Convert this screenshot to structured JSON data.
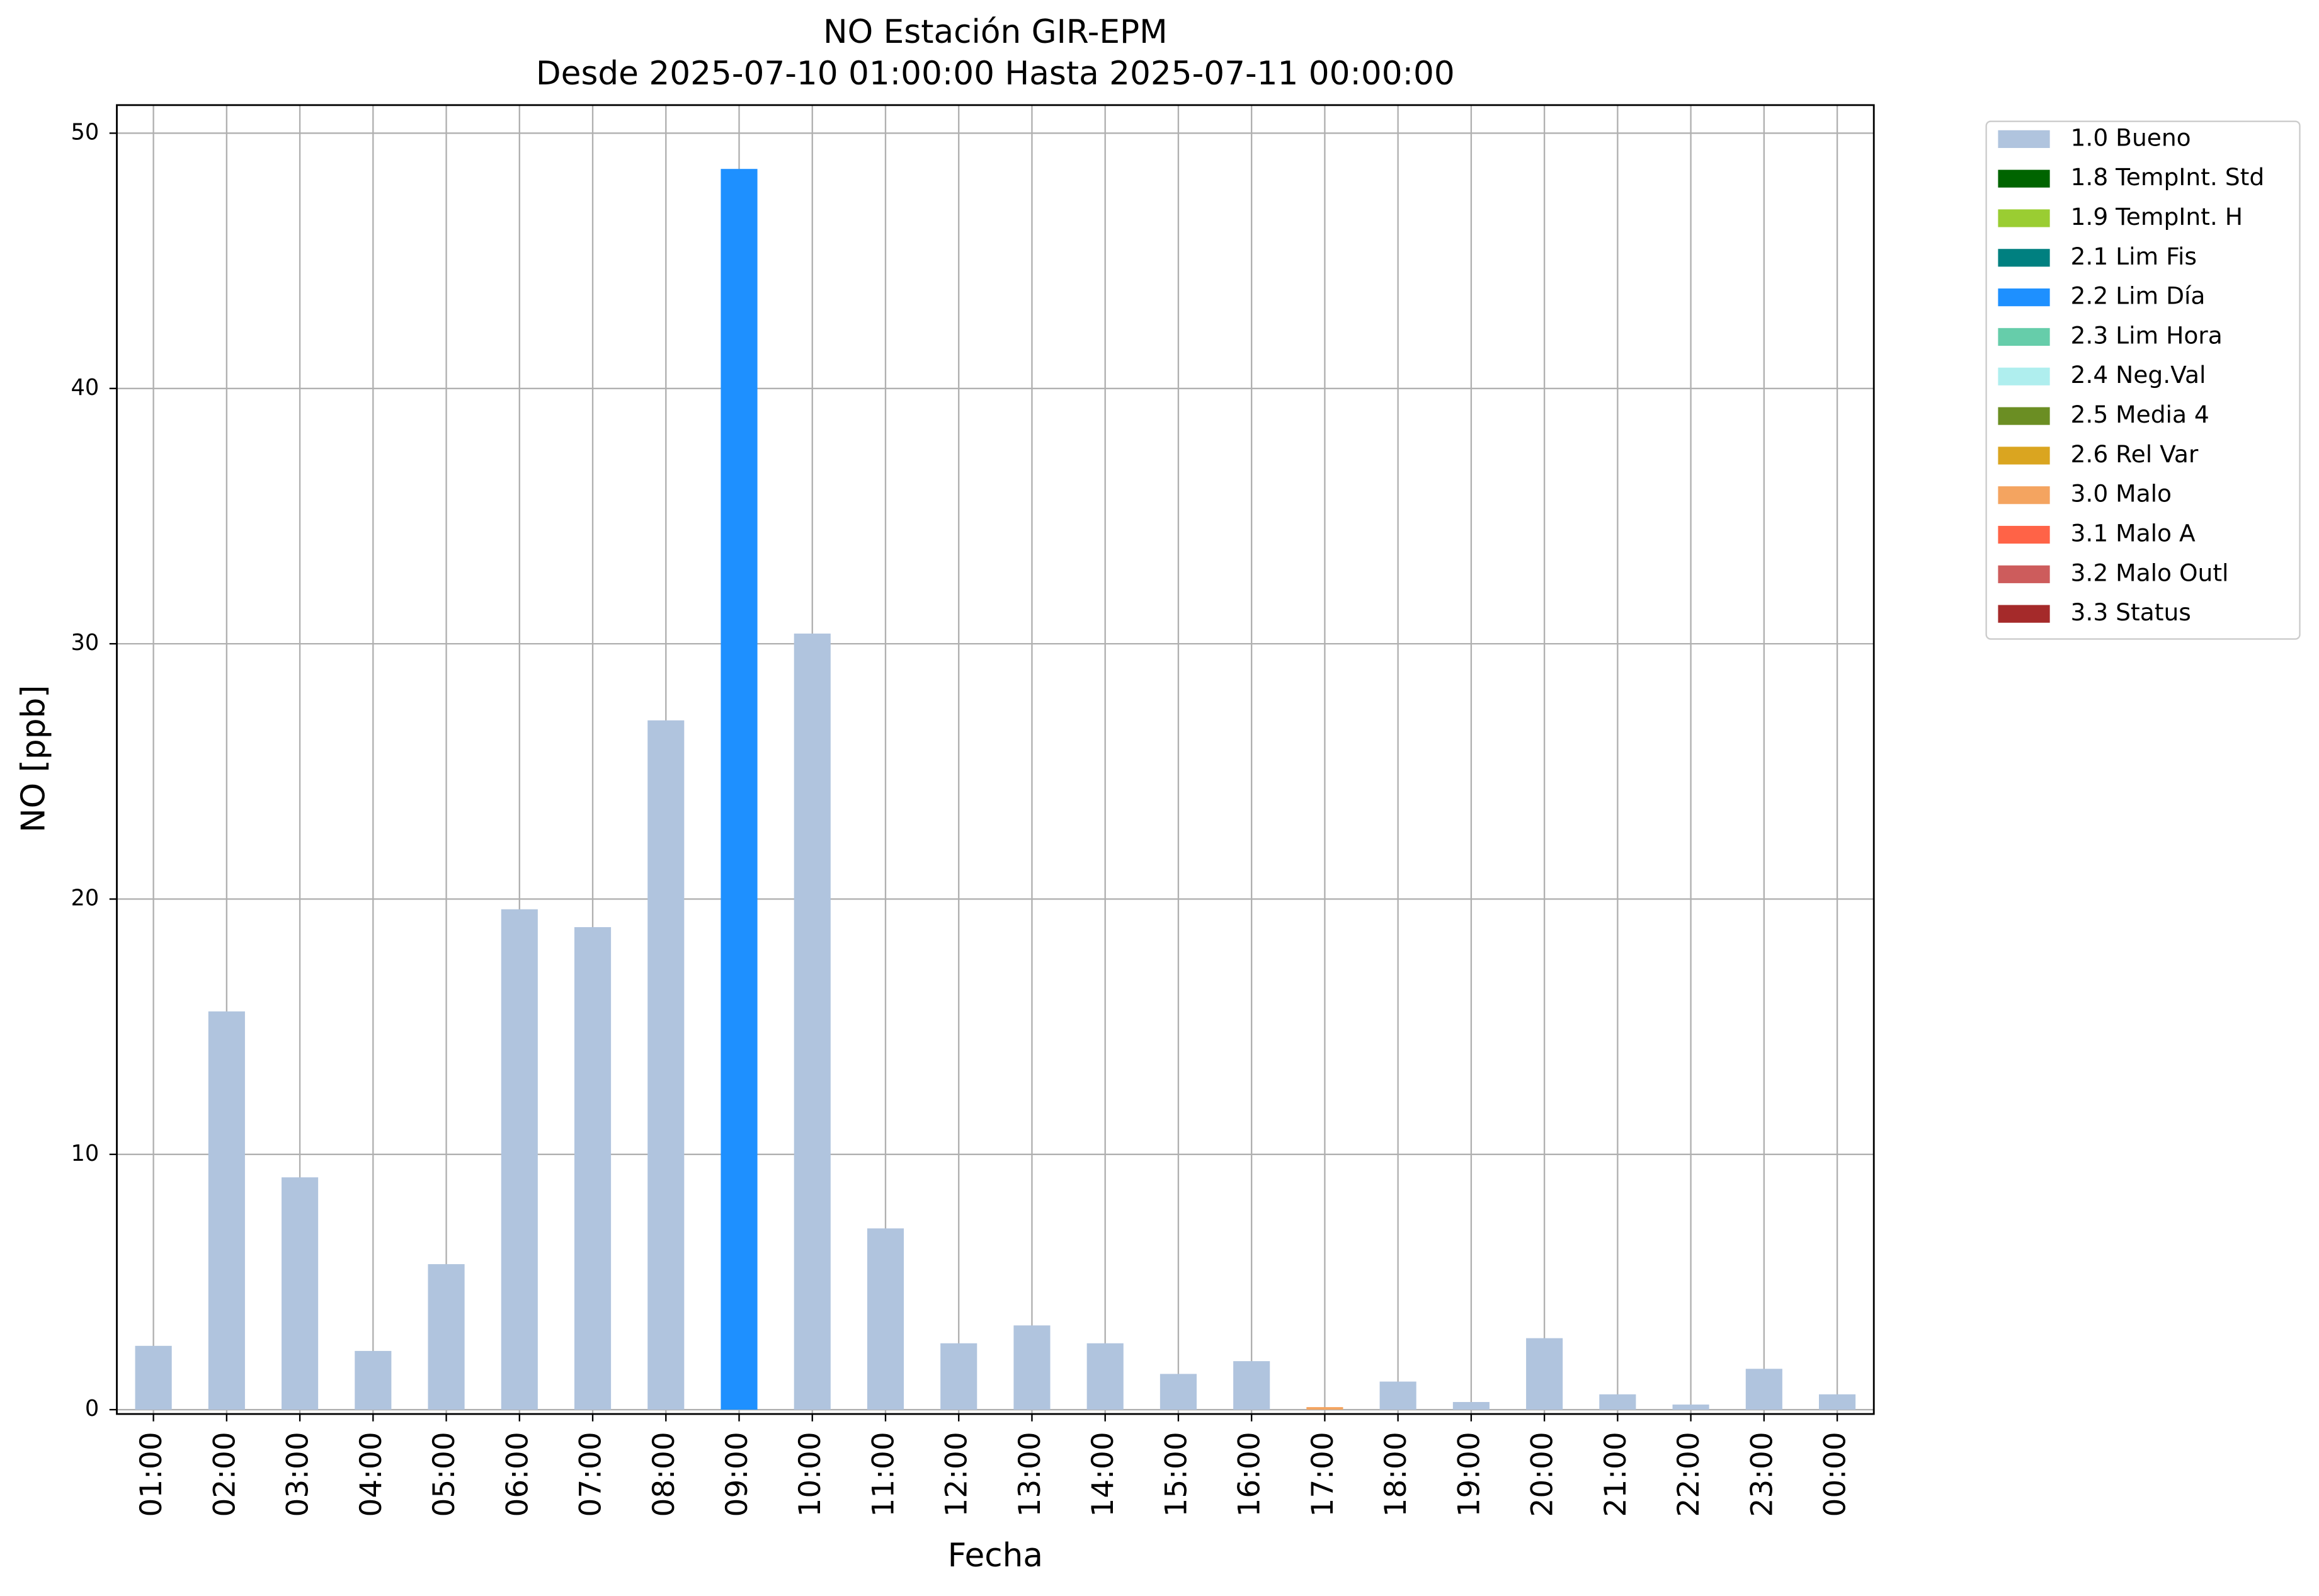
{
  "chart_data": {
    "type": "bar",
    "stacked": true,
    "title": "NO Estación GIR-EPM",
    "subtitle": "Desde 2025-07-10 01:00:00 Hasta 2025-07-11 00:00:00",
    "x_label": "Fecha",
    "y_label": "NO [ppb]",
    "categories": [
      "01:00",
      "02:00",
      "03:00",
      "04:00",
      "05:00",
      "06:00",
      "07:00",
      "08:00",
      "09:00",
      "10:00",
      "11:00",
      "12:00",
      "13:00",
      "14:00",
      "15:00",
      "16:00",
      "17:00",
      "18:00",
      "19:00",
      "20:00",
      "21:00",
      "22:00",
      "23:00",
      "00:00"
    ],
    "series": [
      {
        "name": "1.0 Bueno",
        "color": "#b0c4de",
        "values": [
          2.5,
          15.6,
          9.1,
          2.3,
          5.7,
          19.6,
          18.9,
          27.0,
          null,
          30.4,
          7.1,
          2.6,
          3.3,
          2.6,
          1.4,
          1.9,
          null,
          1.1,
          0.3,
          2.8,
          0.6,
          0.2,
          1.6,
          0.6
        ]
      },
      {
        "name": "1.8 TempInt. Std",
        "color": "#006400",
        "values": [
          null,
          null,
          null,
          null,
          null,
          null,
          null,
          null,
          null,
          null,
          null,
          null,
          null,
          null,
          null,
          null,
          null,
          null,
          null,
          null,
          null,
          null,
          null,
          null
        ]
      },
      {
        "name": "1.9 TempInt. H",
        "color": "#9acd32",
        "values": [
          null,
          null,
          null,
          null,
          null,
          null,
          null,
          null,
          null,
          null,
          null,
          null,
          null,
          null,
          null,
          null,
          null,
          null,
          null,
          null,
          null,
          null,
          null,
          null
        ]
      },
      {
        "name": "2.1 Lim Fis",
        "color": "#008080",
        "values": [
          null,
          null,
          null,
          null,
          null,
          null,
          null,
          null,
          null,
          null,
          null,
          null,
          null,
          null,
          null,
          null,
          null,
          null,
          null,
          null,
          null,
          null,
          null,
          null
        ]
      },
      {
        "name": "2.2 Lim Día",
        "color": "#1e90ff",
        "values": [
          null,
          null,
          null,
          null,
          null,
          null,
          null,
          null,
          48.6,
          null,
          null,
          null,
          null,
          null,
          null,
          null,
          null,
          null,
          null,
          null,
          null,
          null,
          null,
          null
        ]
      },
      {
        "name": "2.3 Lim Hora",
        "color": "#66cdaa",
        "values": [
          null,
          null,
          null,
          null,
          null,
          null,
          null,
          null,
          null,
          null,
          null,
          null,
          null,
          null,
          null,
          null,
          null,
          null,
          null,
          null,
          null,
          null,
          null,
          null
        ]
      },
      {
        "name": "2.4 Neg.Val",
        "color": "#afeeee",
        "values": [
          null,
          null,
          null,
          null,
          null,
          null,
          null,
          null,
          null,
          null,
          null,
          null,
          null,
          null,
          null,
          null,
          null,
          null,
          null,
          null,
          null,
          null,
          null,
          null
        ]
      },
      {
        "name": "2.5 Media 4",
        "color": "#6b8e23",
        "values": [
          null,
          null,
          null,
          null,
          null,
          null,
          null,
          null,
          null,
          null,
          null,
          null,
          null,
          null,
          null,
          null,
          null,
          null,
          null,
          null,
          null,
          null,
          null,
          null
        ]
      },
      {
        "name": "2.6 Rel Var",
        "color": "#daa520",
        "values": [
          null,
          null,
          null,
          null,
          null,
          null,
          null,
          null,
          null,
          null,
          null,
          null,
          null,
          null,
          null,
          null,
          null,
          null,
          null,
          null,
          null,
          null,
          null,
          null
        ]
      },
      {
        "name": "3.0 Malo",
        "color": "#f4a460",
        "values": [
          null,
          null,
          null,
          null,
          null,
          null,
          null,
          null,
          null,
          null,
          null,
          null,
          null,
          null,
          null,
          null,
          0.1,
          null,
          null,
          null,
          null,
          null,
          null,
          null
        ]
      },
      {
        "name": "3.1 Malo A",
        "color": "#ff6347",
        "values": [
          null,
          null,
          null,
          null,
          null,
          null,
          null,
          null,
          null,
          null,
          null,
          null,
          null,
          null,
          null,
          null,
          null,
          null,
          null,
          null,
          null,
          null,
          null,
          null
        ]
      },
      {
        "name": "3.2 Malo Outl",
        "color": "#cd5c5c",
        "values": [
          null,
          null,
          null,
          null,
          null,
          null,
          null,
          null,
          null,
          null,
          null,
          null,
          null,
          null,
          null,
          null,
          null,
          null,
          null,
          null,
          null,
          null,
          null,
          null
        ]
      },
      {
        "name": "3.3 Status",
        "color": "#a52a2a",
        "values": [
          null,
          null,
          null,
          null,
          null,
          null,
          null,
          null,
          null,
          null,
          null,
          null,
          null,
          null,
          null,
          null,
          null,
          null,
          null,
          null,
          null,
          null,
          null,
          null
        ]
      }
    ],
    "ylim": [
      -0.17,
      51.1
    ],
    "yticks": [
      0,
      10,
      20,
      30,
      40,
      50
    ],
    "grid": true,
    "legend": "outside-right"
  }
}
